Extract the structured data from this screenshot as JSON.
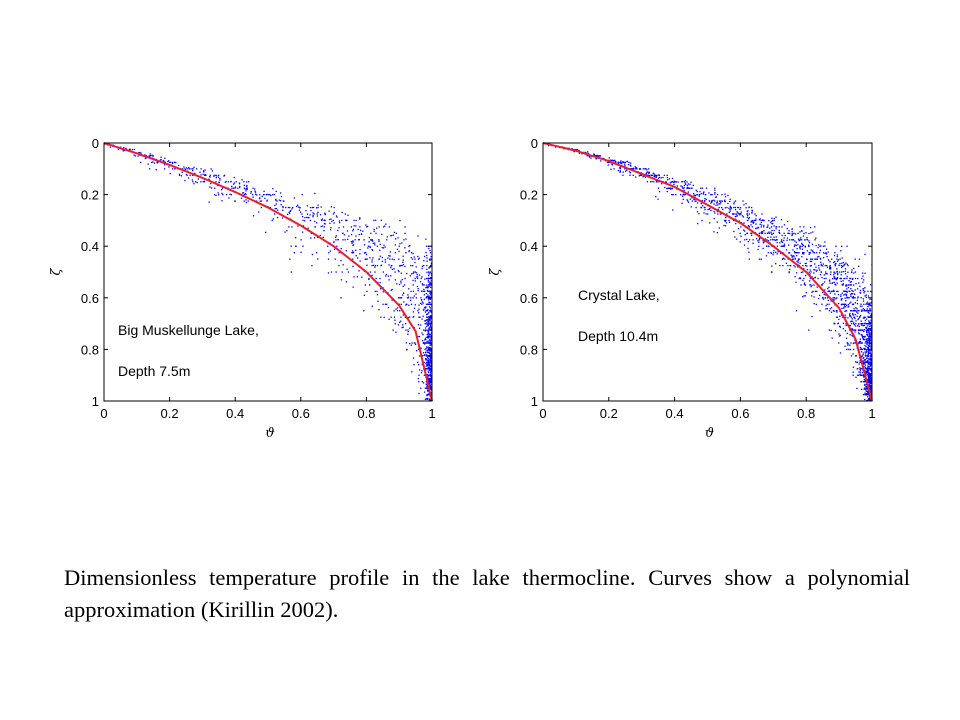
{
  "chart_data": [
    {
      "type": "scatter",
      "xlabel": "ϑ",
      "ylabel": "ζ",
      "xlim": [
        0,
        1
      ],
      "ylim": [
        1,
        0
      ],
      "y_axis_inverted": true,
      "xticks": [
        "0",
        "0.2",
        "0.4",
        "0.6",
        "0.8",
        "1"
      ],
      "yticks": [
        "0",
        "0.2",
        "0.4",
        "0.6",
        "0.8",
        "1"
      ],
      "grid": false,
      "annotation": [
        "Big Muskellunge Lake,",
        "Depth 7.5m"
      ],
      "colors": {
        "points": "#0000ff",
        "curve": "#e8202a"
      },
      "curve": {
        "x": [
          0,
          0.1,
          0.2,
          0.3,
          0.4,
          0.5,
          0.6,
          0.7,
          0.8,
          0.9,
          0.95,
          1
        ],
        "y": [
          0,
          0.04,
          0.085,
          0.135,
          0.19,
          0.25,
          0.32,
          0.4,
          0.5,
          0.63,
          0.73,
          1
        ]
      },
      "points": {
        "count": 1500,
        "spread_x": [
          0.01,
          0.08,
          0.14,
          0.2,
          0.22,
          0.21,
          0.17,
          0.11,
          0.06,
          0.03
        ],
        "bias_x": [
          0.0,
          0.02,
          0.06,
          0.1,
          0.12,
          0.12,
          0.1,
          0.07,
          0.04,
          0.02
        ]
      }
    },
    {
      "type": "scatter",
      "xlabel": "ϑ",
      "ylabel": "ζ",
      "xlim": [
        0,
        1
      ],
      "ylim": [
        1,
        0
      ],
      "y_axis_inverted": true,
      "xticks": [
        "0",
        "0.2",
        "0.4",
        "0.6",
        "0.8",
        "1"
      ],
      "yticks": [
        "0",
        "0.2",
        "0.4",
        "0.6",
        "0.8",
        "1"
      ],
      "grid": false,
      "annotation": [
        "Crystal Lake,",
        "Depth 10.4m"
      ],
      "colors": {
        "points": "#0000ff",
        "curve": "#e8202a"
      },
      "curve": {
        "x": [
          0,
          0.1,
          0.2,
          0.3,
          0.4,
          0.5,
          0.6,
          0.7,
          0.8,
          0.9,
          0.95,
          1
        ],
        "y": [
          0,
          0.03,
          0.07,
          0.12,
          0.17,
          0.24,
          0.31,
          0.4,
          0.5,
          0.64,
          0.76,
          1
        ]
      },
      "points": {
        "count": 2200,
        "spread_x": [
          0.01,
          0.06,
          0.1,
          0.13,
          0.14,
          0.13,
          0.11,
          0.08,
          0.05,
          0.03
        ],
        "bias_x": [
          0.0,
          0.01,
          0.03,
          0.05,
          0.06,
          0.06,
          0.05,
          0.04,
          0.02,
          0.01
        ]
      }
    }
  ],
  "caption": "Dimensionless temperature profile in the lake thermocline. Curves show a polynomial approximation (Kirillin 2002)."
}
